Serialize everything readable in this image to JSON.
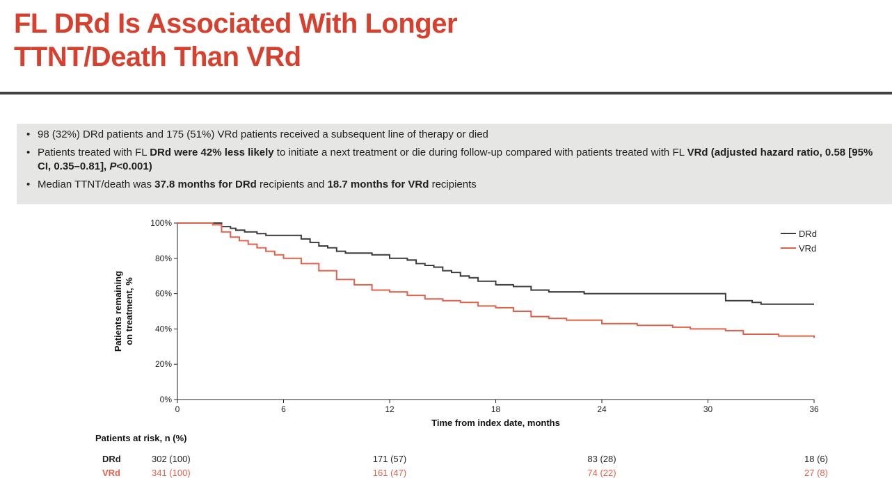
{
  "title": {
    "line1": "FL DRd Is Associated With Longer",
    "line2": "TTNT/Death Than VRd"
  },
  "bullets": [
    [
      "98 (32%) DRd patients and 175 (51%) VRd patients received a subsequent line of therapy or died"
    ],
    [
      "Patients treated with FL ",
      "DRd were 42% less likely",
      " to initiate a next treatment or die during follow-up compared with patients treated with FL ",
      "VRd",
      " ",
      "(adjusted hazard ratio, 0.58 [95% CI, 0.35–0.81], ",
      "P",
      "<0.001)"
    ],
    [
      "Median TTNT/death was ",
      "37.8 months for DRd",
      " recipients and ",
      "18.7 months for VRd",
      " recipients"
    ]
  ],
  "colors": {
    "title": "#d6402e",
    "drd": "#3a3a3a",
    "vrd": "#e0604c"
  },
  "chart_data": {
    "type": "line",
    "step": true,
    "title": "",
    "xlabel": "Time from index date, months",
    "ylabel": "Patients remaining on treatment, %",
    "ylabel_lines": [
      "Patients remaining",
      "on treatment, %"
    ],
    "xlim": [
      0,
      36
    ],
    "ylim": [
      0,
      100
    ],
    "xticks": [
      "0",
      "6",
      "12",
      "18",
      "24",
      "30",
      "36"
    ],
    "xtick_values": [
      0,
      6,
      12,
      18,
      24,
      30,
      36
    ],
    "yticks": [
      "0%",
      "20%",
      "40%",
      "60%",
      "80%",
      "100%"
    ],
    "ytick_values": [
      0,
      20,
      40,
      60,
      80,
      100
    ],
    "legend_position": "top-right",
    "series": [
      {
        "name": "DRd",
        "color": "#3a3a3a",
        "x": [
          0,
          2.0,
          2.5,
          3.0,
          3.3,
          3.8,
          4.5,
          5.0,
          6.5,
          7.0,
          7.5,
          8.0,
          8.5,
          9.0,
          9.5,
          10.0,
          11.0,
          12.0,
          12.5,
          13.0,
          13.5,
          14.0,
          14.5,
          15.0,
          15.5,
          16.0,
          16.5,
          17.0,
          17.5,
          18.0,
          18.5,
          19.0,
          20.0,
          21.0,
          22.0,
          23.0,
          26.0,
          29.0,
          30.5,
          31.0,
          32.0,
          32.5,
          33.0,
          36.0
        ],
        "y": [
          100,
          100,
          98,
          97,
          96,
          95,
          94,
          93,
          93,
          91,
          89,
          87,
          86,
          84,
          83,
          83,
          82,
          80,
          80,
          79,
          77,
          76,
          75,
          73,
          72,
          70,
          69,
          67,
          67,
          65,
          65,
          64,
          62,
          61,
          61,
          60,
          60,
          60,
          60,
          56,
          56,
          55,
          54,
          54
        ]
      },
      {
        "name": "VRd",
        "color": "#e0604c",
        "x": [
          0,
          2.0,
          2.5,
          3.0,
          3.5,
          4.0,
          4.5,
          5.0,
          5.5,
          6.0,
          7.0,
          8.0,
          9.0,
          10.0,
          11.0,
          12.0,
          13.0,
          14.0,
          15.0,
          16.0,
          17.0,
          18.0,
          19.0,
          20.0,
          21.0,
          22.0,
          24.0,
          26.0,
          28.0,
          29.0,
          30.0,
          31.0,
          32.0,
          33.0,
          34.0,
          35.0,
          36.0
        ],
        "y": [
          100,
          99,
          95,
          92,
          90,
          88,
          86,
          84,
          82,
          80,
          77,
          73,
          68,
          65,
          62,
          61,
          59,
          57,
          56,
          55,
          53,
          52,
          50,
          47,
          46,
          45,
          43,
          42,
          41,
          40,
          40,
          39,
          37,
          37,
          36,
          36,
          35
        ]
      }
    ],
    "risk_table": {
      "title": "Patients at risk, n (%)",
      "time_points": [
        0,
        12,
        24,
        36
      ],
      "rows": [
        {
          "name": "DRd",
          "color": "#222222",
          "values": [
            "302 (100)",
            "171 (57)",
            "83 (28)",
            "18 (6)"
          ]
        },
        {
          "name": "VRd",
          "color": "#e0604c",
          "values": [
            "341 (100)",
            "161 (47)",
            "74 (22)",
            "27 (8)"
          ]
        }
      ]
    }
  }
}
